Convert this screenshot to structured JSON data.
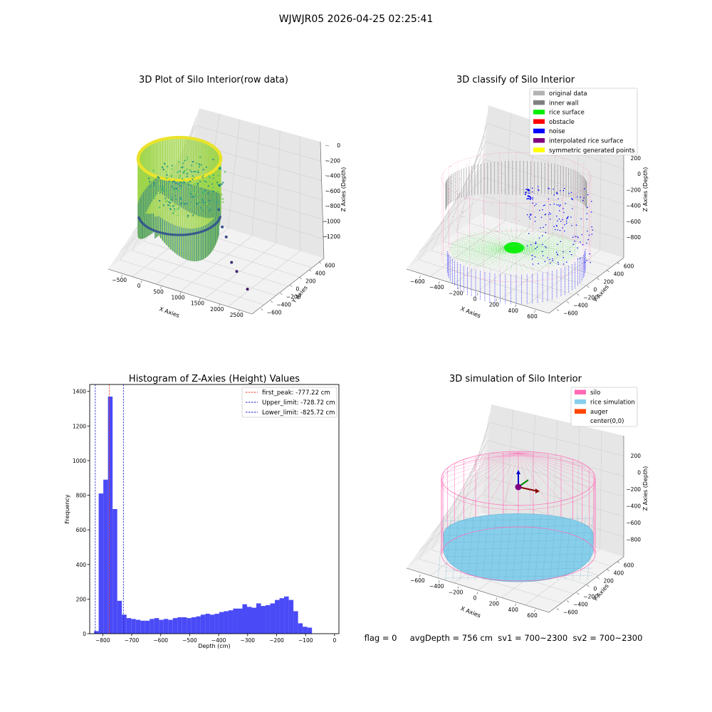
{
  "suptitle": "WJWJR05 2026-04-25 02:25:41",
  "footer": "flag = 0     avgDepth = 756 cm  sv1 = 700~2300  sv2 = 700~2300",
  "colors": {
    "hist_bar": "#4a4af7",
    "first_peak": "#e8382e",
    "limits": "#1c1ccc",
    "silo": "#ff69b4",
    "rice": "#87ceeb",
    "inner_wall": "#808080",
    "rice_surface": "#00ee00",
    "noise": "#0000ff",
    "original": "#b3b3b3",
    "obstacle": "#ff0000",
    "interp": "#800080",
    "symmetric": "#ffff00",
    "auger": "#ff4500"
  },
  "chart_data": [
    {
      "type": "scatter3d",
      "title": "3D Plot of Silo Interior(row data)",
      "xlabel": "X Axies",
      "ylabel": "Y Axies",
      "zlabel": "Z Axies (Depth)",
      "xticks": [
        "−500",
        "0",
        "500",
        "1000",
        "1500",
        "2000",
        "2500"
      ],
      "yticks": [
        "−600",
        "−400",
        "−200",
        "0",
        "200",
        "400",
        "600"
      ],
      "zticks": [
        "0",
        "−200",
        "−400",
        "−600",
        "−800",
        "−1000",
        "−1200"
      ],
      "xlim": [
        -600,
        2700
      ],
      "ylim": [
        -700,
        700
      ],
      "zlim": [
        -1300,
        50
      ],
      "colormap": "viridis",
      "outlier_points": [
        {
          "x": 900,
          "y": 200,
          "z": -580
        },
        {
          "x": 950,
          "y": 150,
          "z": -700
        },
        {
          "x": 1050,
          "y": 50,
          "z": -860
        },
        {
          "x": 1250,
          "y": -50,
          "z": -950
        },
        {
          "x": 1400,
          "y": -100,
          "z": -1000
        },
        {
          "x": 1700,
          "y": -250,
          "z": -1130
        },
        {
          "x": 1900,
          "y": -320,
          "z": -1160
        },
        {
          "x": 2300,
          "y": -450,
          "z": -1220
        }
      ]
    },
    {
      "type": "scatter3d",
      "title": "3D classify of Silo Interior",
      "xlabel": "X Axies",
      "ylabel": "Y Axies",
      "zlabel": "Z Axies (Depth)",
      "xticks": [
        "−600",
        "−400",
        "−200",
        "0",
        "200",
        "400",
        "600"
      ],
      "yticks": [
        "−600",
        "−400",
        "−200",
        "0",
        "200",
        "400",
        "600"
      ],
      "zticks": [
        "200",
        "0",
        "−200",
        "−400",
        "−600",
        "−800"
      ],
      "legend": [
        "original data",
        "inner wall",
        "rice surface",
        "obstacle",
        "noise",
        "interpolated rice surface",
        "symmetric generated points"
      ],
      "legend_position": "top-right"
    },
    {
      "type": "bar",
      "title": "Histogram of Z-Axies (Height) Values",
      "xlabel": "Depth (cm)",
      "ylabel": "Frequency",
      "xlim": [
        -845,
        15
      ],
      "ylim": [
        0,
        1440
      ],
      "xticks": [
        -800,
        -700,
        -600,
        -500,
        -400,
        -300,
        -200,
        -100,
        0
      ],
      "yticks": [
        0,
        200,
        400,
        600,
        800,
        1000,
        1200,
        1400
      ],
      "bin_start": -830,
      "bin_width": 16,
      "values": [
        15,
        810,
        890,
        1370,
        720,
        190,
        110,
        90,
        85,
        80,
        75,
        75,
        85,
        90,
        80,
        85,
        80,
        90,
        95,
        95,
        90,
        95,
        100,
        110,
        115,
        110,
        115,
        125,
        130,
        135,
        145,
        145,
        170,
        155,
        150,
        175,
        160,
        165,
        175,
        195,
        205,
        215,
        195,
        130,
        60,
        40,
        35
      ],
      "lines": [
        {
          "label": "first_peak: -777.22 cm",
          "x": -777.22,
          "style": "first_peak"
        },
        {
          "label": "Upper_limit: -728.72 cm",
          "x": -728.72,
          "style": "limits"
        },
        {
          "label": "Lower_limit: -825.72 cm",
          "x": -825.72,
          "style": "limits"
        }
      ],
      "legend_position": "top-right"
    },
    {
      "type": "surface3d",
      "title": "3D simulation of Silo Interior",
      "xlabel": "X Axies",
      "ylabel": "Y Axies",
      "zlabel": "Z Axies (Depth)",
      "xticks": [
        "−600",
        "−400",
        "−200",
        "0",
        "200",
        "400",
        "600"
      ],
      "yticks": [
        "−600",
        "−400",
        "−200",
        "0",
        "200",
        "400",
        "600"
      ],
      "zticks": [
        "200",
        "0",
        "−200",
        "−400",
        "−600",
        "−800"
      ],
      "legend": [
        "silo",
        "rice simulation",
        "auger",
        "center(0,0)"
      ],
      "legend_position": "top-right"
    }
  ]
}
